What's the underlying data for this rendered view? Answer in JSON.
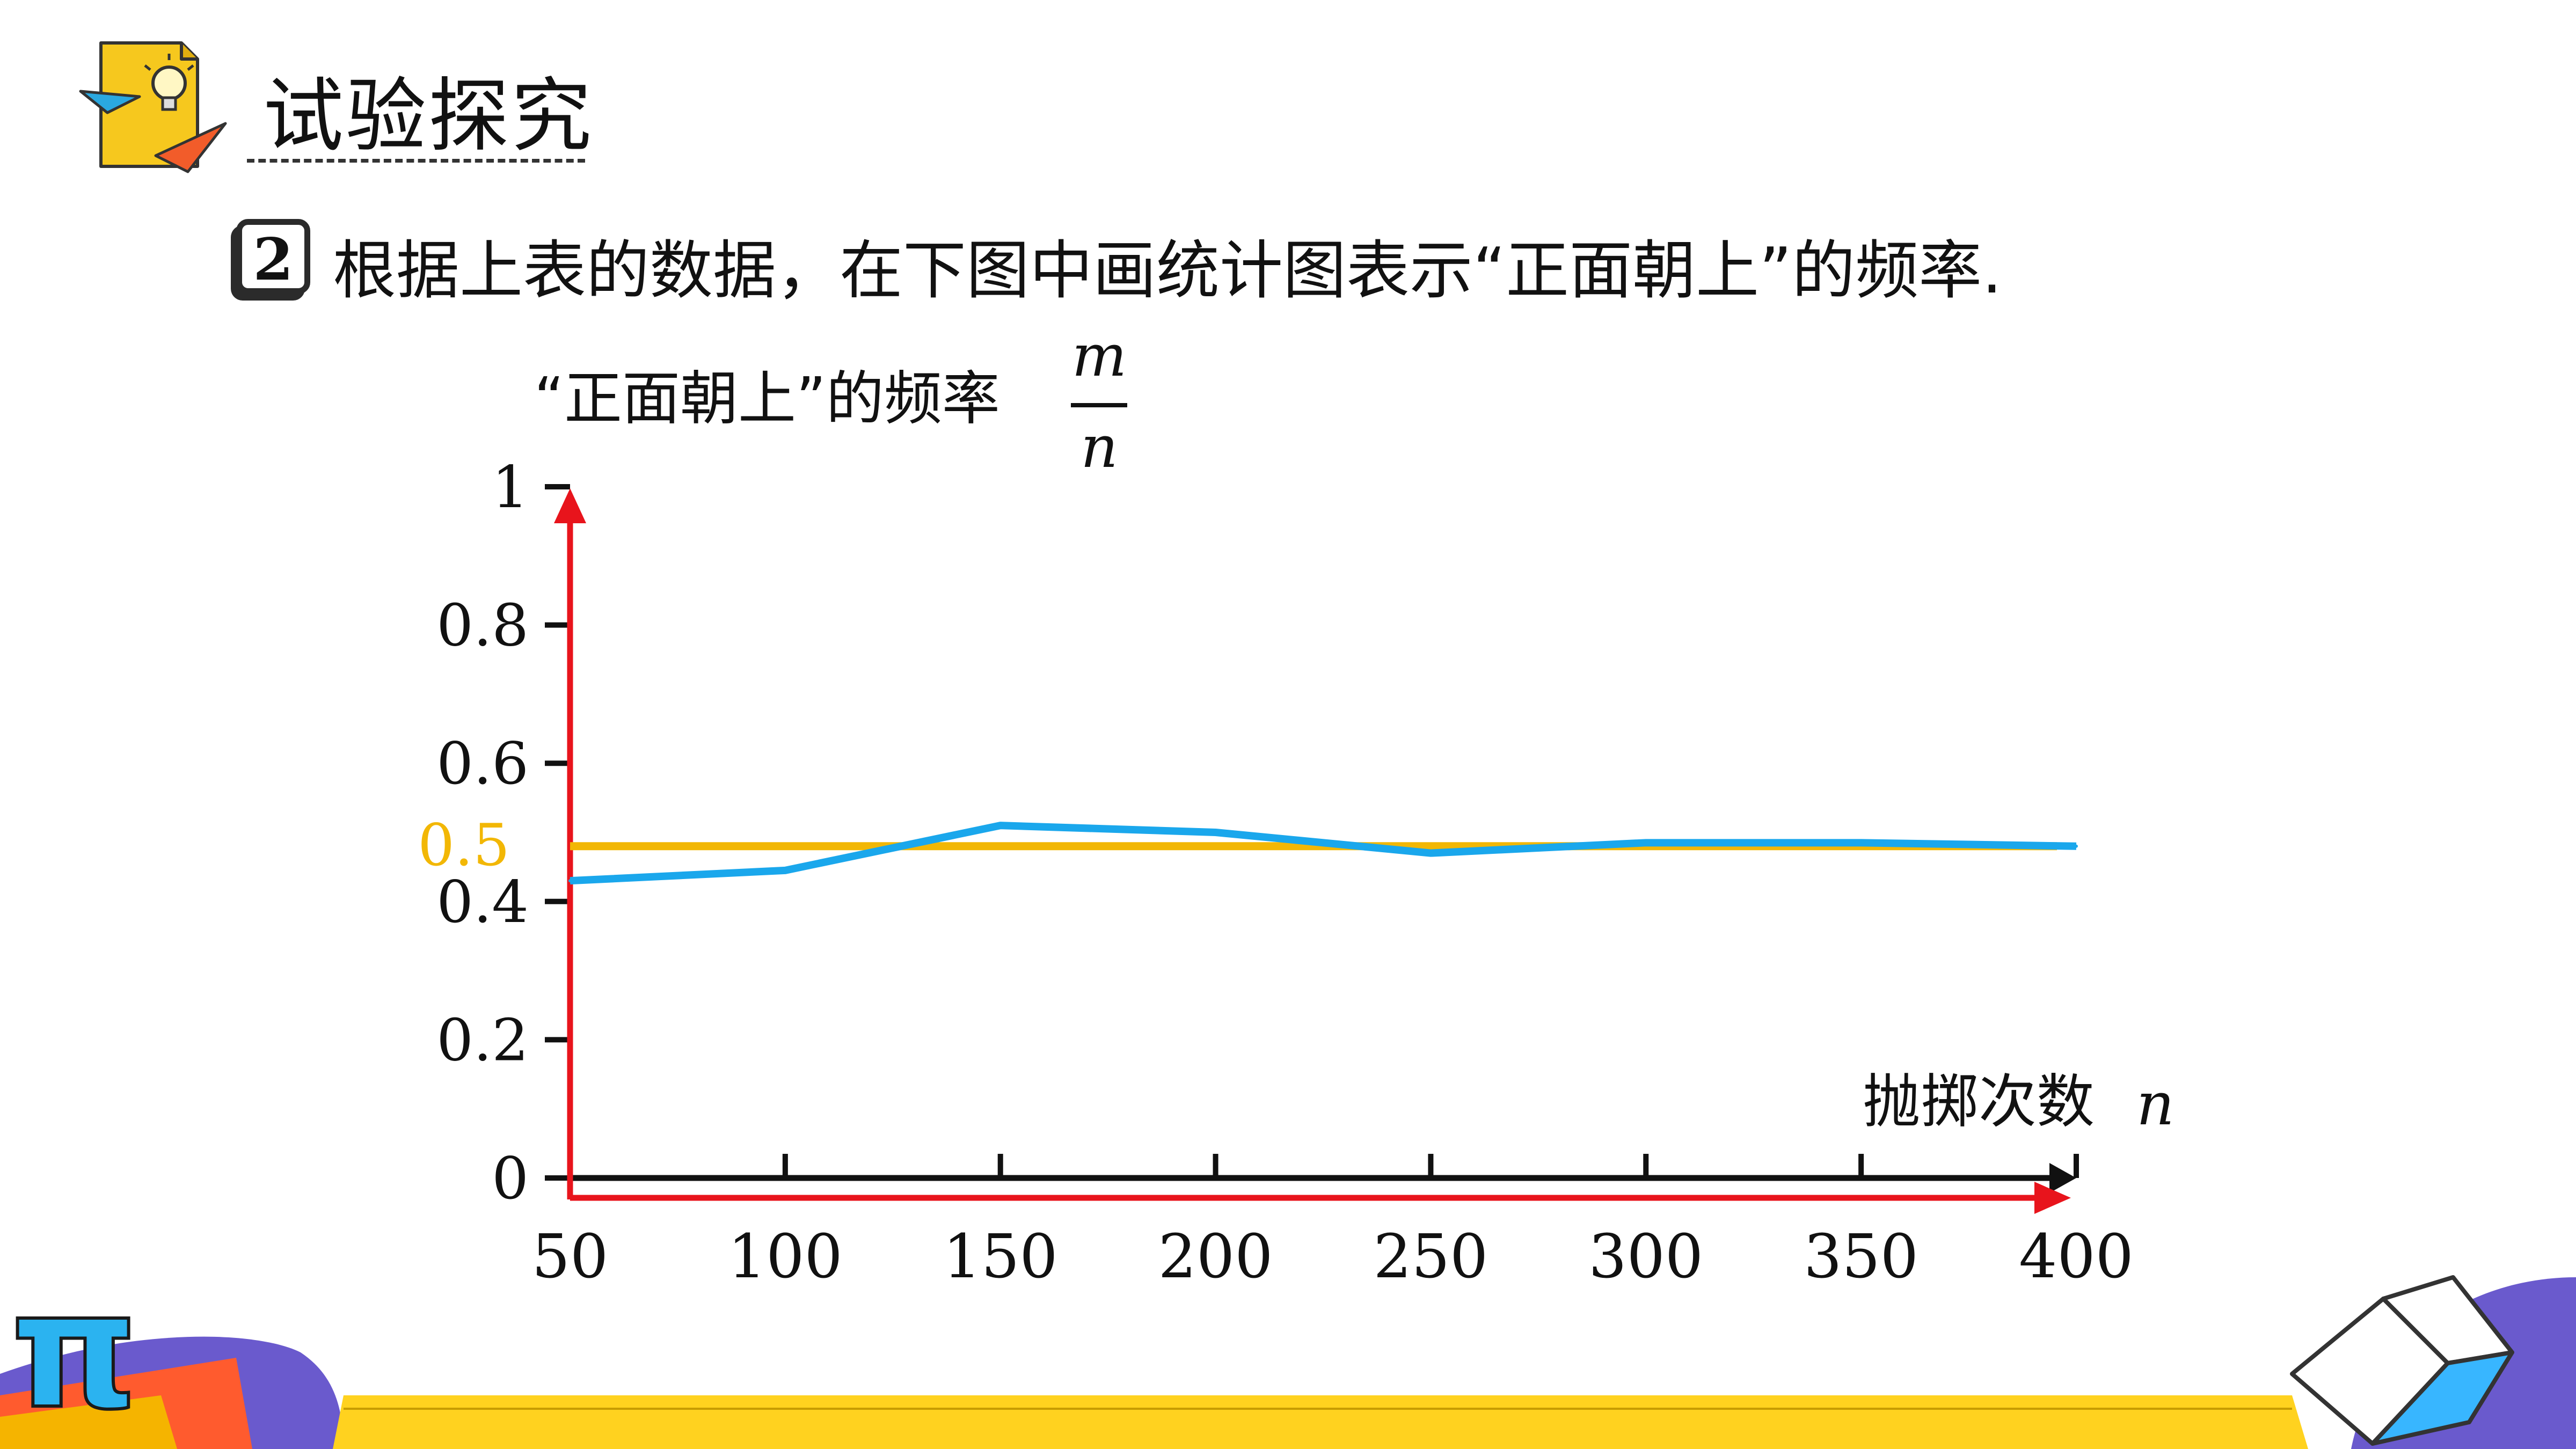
{
  "header": {
    "title": "试验探究"
  },
  "question": {
    "number": "2",
    "text": "根据上表的数据，在下图中画统计图表示“正面朝上”的频率."
  },
  "chart_data": {
    "type": "line",
    "ylabel": "“正面朝上”的频率",
    "ylabel_fraction": {
      "numerator": "m",
      "denominator": "n"
    },
    "xlabel": "抛掷次数",
    "xlabel_var": "n",
    "x": [
      50,
      100,
      150,
      200,
      250,
      300,
      350,
      400
    ],
    "xlim": [
      50,
      400
    ],
    "ylim": [
      0,
      1
    ],
    "x_ticks": [
      "50",
      "100",
      "150",
      "200",
      "250",
      "300",
      "350",
      "400"
    ],
    "y_ticks": [
      "0",
      "0.2",
      "0.4",
      "0.6",
      "0.8",
      "1"
    ],
    "y_tick_values": [
      0,
      0.2,
      0.4,
      0.6,
      0.8,
      1
    ],
    "series": [
      {
        "values": [
          0.43,
          0.445,
          0.51,
          0.5,
          0.47,
          0.485,
          0.485,
          0.48
        ],
        "color": "#1aa7ec"
      }
    ],
    "reference_line": {
      "value": 0.48,
      "label": "0.5",
      "color": "#f2b705"
    },
    "axis_color": "#e8141c",
    "grid": false
  },
  "decorations": {
    "pi_symbol": "π"
  }
}
